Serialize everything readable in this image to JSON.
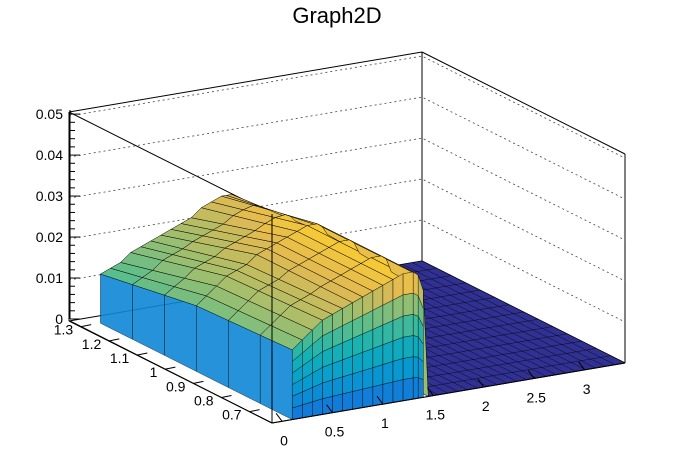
{
  "title": "Graph2D",
  "chart_data": {
    "type": "surface",
    "title": "Graph2D",
    "xlabel": "",
    "ylabel": "",
    "zlabel": "",
    "x_ticks": [
      "0",
      "0.5",
      "1",
      "1.5",
      "2",
      "2.5",
      "3"
    ],
    "y_ticks": [
      "0.7",
      "0.8",
      "0.9",
      "1",
      "1.1",
      "1.2",
      "1.3"
    ],
    "z_ticks": [
      "0",
      "0.01",
      "0.02",
      "0.03",
      "0.04",
      "0.05"
    ],
    "xlim": [
      -0.1,
      3.4
    ],
    "ylim": [
      0.62,
      1.34
    ],
    "zlim": [
      0,
      0.051
    ],
    "grid": true,
    "palette": "parula",
    "x_samples": [
      0.1,
      0.2,
      0.3,
      0.4,
      0.5,
      0.6,
      0.7,
      0.8,
      0.9,
      1.0,
      1.1,
      1.2,
      1.3,
      1.35,
      1.4
    ],
    "surface_peak_z_at_y": [
      {
        "y": 1.3,
        "z": [
          0.012,
          0.013,
          0.014,
          0.016,
          0.017,
          0.018,
          0.019,
          0.02,
          0.021,
          0.022,
          0.024,
          0.025,
          0.026,
          0.026,
          0.026
        ]
      },
      {
        "y": 0.95,
        "z": [
          0.016,
          0.018,
          0.02,
          0.022,
          0.023,
          0.024,
          0.026,
          0.027,
          0.028,
          0.029,
          0.03,
          0.031,
          0.031,
          0.03,
          0.028
        ]
      },
      {
        "y": 0.62,
        "z": [
          0.017,
          0.019,
          0.021,
          0.023,
          0.024,
          0.025,
          0.026,
          0.027,
          0.028,
          0.029,
          0.03,
          0.031,
          0.031,
          0.03,
          0.026
        ]
      }
    ],
    "zero_region": {
      "x": [
        1.45,
        3.4
      ],
      "z": 0
    }
  }
}
